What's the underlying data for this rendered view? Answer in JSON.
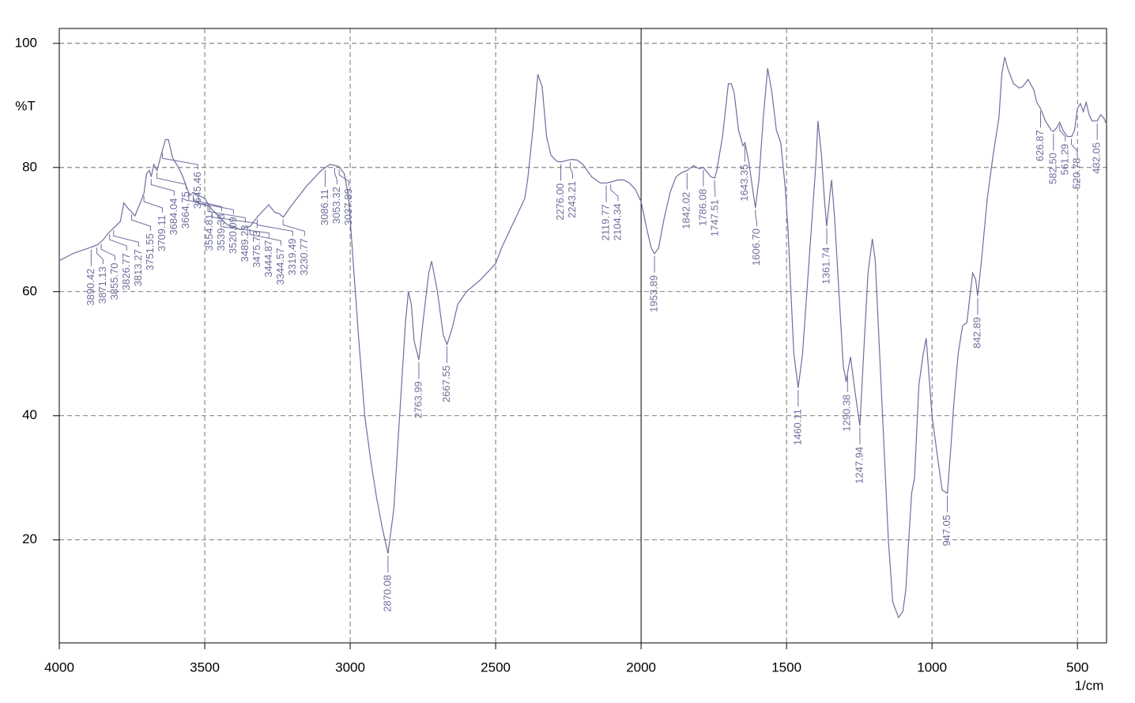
{
  "chart_data": {
    "type": "line",
    "y_label": "%T",
    "x_label": "1/cm",
    "xlim": [
      4000,
      400
    ],
    "ylim": [
      3.4,
      102.4
    ],
    "xticks": [
      4000,
      3500,
      3000,
      2500,
      2000,
      1500,
      1000,
      500
    ],
    "yticks": [
      20,
      40,
      60,
      80,
      100
    ],
    "grid": true,
    "solid_gridline": 2000,
    "series": [
      {
        "color": "#6e6e9e",
        "x": [
          4000,
          3950,
          3900,
          3870,
          3850,
          3830,
          3810,
          3790,
          3778,
          3765,
          3751,
          3740,
          3720,
          3709,
          3700,
          3690,
          3684,
          3675,
          3664,
          3650,
          3635,
          3625,
          3610,
          3590,
          3575,
          3560,
          3550,
          3540,
          3520,
          3500,
          3480,
          3460,
          3440,
          3420,
          3400,
          3380,
          3344,
          3320,
          3300,
          3280,
          3260,
          3245,
          3230,
          3200,
          3150,
          3100,
          3070,
          3040,
          3020,
          3005,
          2990,
          2970,
          2950,
          2930,
          2910,
          2890,
          2870,
          2850,
          2830,
          2810,
          2800,
          2790,
          2780,
          2764,
          2750,
          2730,
          2720,
          2700,
          2680,
          2667,
          2650,
          2630,
          2600,
          2550,
          2500,
          2480,
          2450,
          2420,
          2400,
          2390,
          2370,
          2355,
          2340,
          2325,
          2310,
          2290,
          2276,
          2240,
          2220,
          2200,
          2170,
          2140,
          2120,
          2100,
          2080,
          2060,
          2040,
          2020,
          2000,
          1980,
          1965,
          1954,
          1940,
          1920,
          1900,
          1880,
          1860,
          1842,
          1820,
          1800,
          1786,
          1760,
          1747,
          1740,
          1720,
          1700,
          1690,
          1680,
          1665,
          1650,
          1643,
          1630,
          1615,
          1607,
          1595,
          1580,
          1565,
          1550,
          1535,
          1520,
          1505,
          1495,
          1485,
          1475,
          1460,
          1445,
          1430,
          1415,
          1400,
          1392,
          1380,
          1370,
          1362,
          1350,
          1345,
          1335,
          1320,
          1305,
          1295,
          1290,
          1280,
          1265,
          1248,
          1235,
          1220,
          1205,
          1195,
          1180,
          1165,
          1150,
          1135,
          1115,
          1100,
          1090,
          1080,
          1070,
          1060,
          1045,
          1030,
          1020,
          1000,
          980,
          965,
          947,
          935,
          925,
          910,
          895,
          880,
          868,
          860,
          850,
          843,
          830,
          810,
          790,
          770,
          760,
          750,
          740,
          720,
          700,
          690,
          680,
          670,
          650,
          640,
          627,
          610,
          590,
          582,
          570,
          561,
          550,
          535,
          520,
          510,
          500,
          490,
          480,
          470,
          460,
          450,
          432,
          420,
          410,
          400
        ],
        "values": [
          65.0,
          66.2,
          67.0,
          67.5,
          68.3,
          69.5,
          70.4,
          71.3,
          74.3,
          73.5,
          72.8,
          72.2,
          74.5,
          75.8,
          79.0,
          79.5,
          78.5,
          80.5,
          79.5,
          82.0,
          84.5,
          84.5,
          81.5,
          80.0,
          78.5,
          76.5,
          75.5,
          76.0,
          75.5,
          75.0,
          73.5,
          72.5,
          71.5,
          70.7,
          70.5,
          70.0,
          70.5,
          72.0,
          73.0,
          74.0,
          72.8,
          72.6,
          72.0,
          74.0,
          77.0,
          79.5,
          80.5,
          80.2,
          79.0,
          75.0,
          65.0,
          52.0,
          40.0,
          33.0,
          27.0,
          22.0,
          17.8,
          25.0,
          40.0,
          55.0,
          60.0,
          58.0,
          52.0,
          49.0,
          55.0,
          63.0,
          64.9,
          60.0,
          53.0,
          51.5,
          54.0,
          58.0,
          60.0,
          62.0,
          64.5,
          67.0,
          70.0,
          73.0,
          75.0,
          78.0,
          87.0,
          95.0,
          93.0,
          85.0,
          82.0,
          81.0,
          80.9,
          81.3,
          81.2,
          80.5,
          78.5,
          77.5,
          77.5,
          77.7,
          78.0,
          78.0,
          77.5,
          76.5,
          74.5,
          70.0,
          67.0,
          66.1,
          67.0,
          72.0,
          76.0,
          78.5,
          79.2,
          79.5,
          80.3,
          79.8,
          80.0,
          78.5,
          78.3,
          79.5,
          85.0,
          93.5,
          93.5,
          92.0,
          86.0,
          83.5,
          84.0,
          81.0,
          76.0,
          73.5,
          78.0,
          88.0,
          96.0,
          92.0,
          86.0,
          84.0,
          77.0,
          70.0,
          60.0,
          50.0,
          44.5,
          50.0,
          60.0,
          70.0,
          80.0,
          87.5,
          82.0,
          75.0,
          70.5,
          76.0,
          78.0,
          72.0,
          60.0,
          48.0,
          45.5,
          47.0,
          49.5,
          44.0,
          38.4,
          50.0,
          63.0,
          68.5,
          65.0,
          50.0,
          35.0,
          20.0,
          10.0,
          7.5,
          8.5,
          12.0,
          20.0,
          27.5,
          30.0,
          45.0,
          50.0,
          52.5,
          40.0,
          33.0,
          28.0,
          27.5,
          35.0,
          42.0,
          50.0,
          54.5,
          55.0,
          60.0,
          63.0,
          62.0,
          59.3,
          65.0,
          75.0,
          82.0,
          88.0,
          95.0,
          97.8,
          96.0,
          93.5,
          92.8,
          93.0,
          93.5,
          94.2,
          92.5,
          90.5,
          89.5,
          87.5,
          86.0,
          85.8,
          86.5,
          87.3,
          86.0,
          85.0,
          85.0,
          86.0,
          89.5,
          90.3,
          89.0,
          90.5,
          88.5,
          87.5,
          87.5,
          88.5,
          88.0,
          87.0
        ]
      }
    ],
    "peak_labels": [
      {
        "value": 3890.42,
        "label": "3890.42"
      },
      {
        "value": 3871.13,
        "label": "3871.13"
      },
      {
        "value": 3855.7,
        "label": "3855.70"
      },
      {
        "value": 3826.77,
        "label": "3826.77"
      },
      {
        "value": 3813.27,
        "label": "3813.27"
      },
      {
        "value": 3751.55,
        "label": "3751.55"
      },
      {
        "value": 3709.11,
        "label": "3709.11"
      },
      {
        "value": 3684.04,
        "label": "3684.04"
      },
      {
        "value": 3664.75,
        "label": "3664.75"
      },
      {
        "value": 3645.46,
        "label": "3645.46"
      },
      {
        "value": 3554.81,
        "label": "3554.81"
      },
      {
        "value": 3539.38,
        "label": "3539.38"
      },
      {
        "value": 3520.09,
        "label": "3520.09"
      },
      {
        "value": 3489.23,
        "label": "3489.23"
      },
      {
        "value": 3475.73,
        "label": "3475.73"
      },
      {
        "value": 3444.87,
        "label": "3444.87"
      },
      {
        "value": 3344.57,
        "label": "3344.57"
      },
      {
        "value": 3319.49,
        "label": "3319.49"
      },
      {
        "value": 3230.77,
        "label": "3230.77"
      },
      {
        "value": 3086.11,
        "label": "3086.11"
      },
      {
        "value": 3053.32,
        "label": "3053.32"
      },
      {
        "value": 3037.89,
        "label": "3037.89"
      },
      {
        "value": 2870.08,
        "label": "2870.08"
      },
      {
        "value": 2763.99,
        "label": "2763.99"
      },
      {
        "value": 2667.55,
        "label": "2667.55"
      },
      {
        "value": 2276.0,
        "label": "2276.00"
      },
      {
        "value": 2243.21,
        "label": "2243.21"
      },
      {
        "value": 2119.77,
        "label": "2119.77"
      },
      {
        "value": 2104.34,
        "label": "2104.34"
      },
      {
        "value": 1953.89,
        "label": "1953.89"
      },
      {
        "value": 1842.02,
        "label": "1842.02"
      },
      {
        "value": 1786.08,
        "label": "1786.08"
      },
      {
        "value": 1747.51,
        "label": "1747.51"
      },
      {
        "value": 1643.35,
        "label": "1643.35"
      },
      {
        "value": 1606.7,
        "label": "1606.70"
      },
      {
        "value": 1460.11,
        "label": "1460.11"
      },
      {
        "value": 1361.74,
        "label": "1361.74"
      },
      {
        "value": 1290.38,
        "label": "1290.38"
      },
      {
        "value": 1247.94,
        "label": "1247.94"
      },
      {
        "value": 947.05,
        "label": "947.05"
      },
      {
        "value": 842.89,
        "label": "842.89"
      },
      {
        "value": 626.87,
        "label": "626.87"
      },
      {
        "value": 582.5,
        "label": "582.50"
      },
      {
        "value": 561.29,
        "label": "561.29"
      },
      {
        "value": 520.78,
        "label": "520.78"
      },
      {
        "value": 432.05,
        "label": "432.05"
      }
    ]
  }
}
